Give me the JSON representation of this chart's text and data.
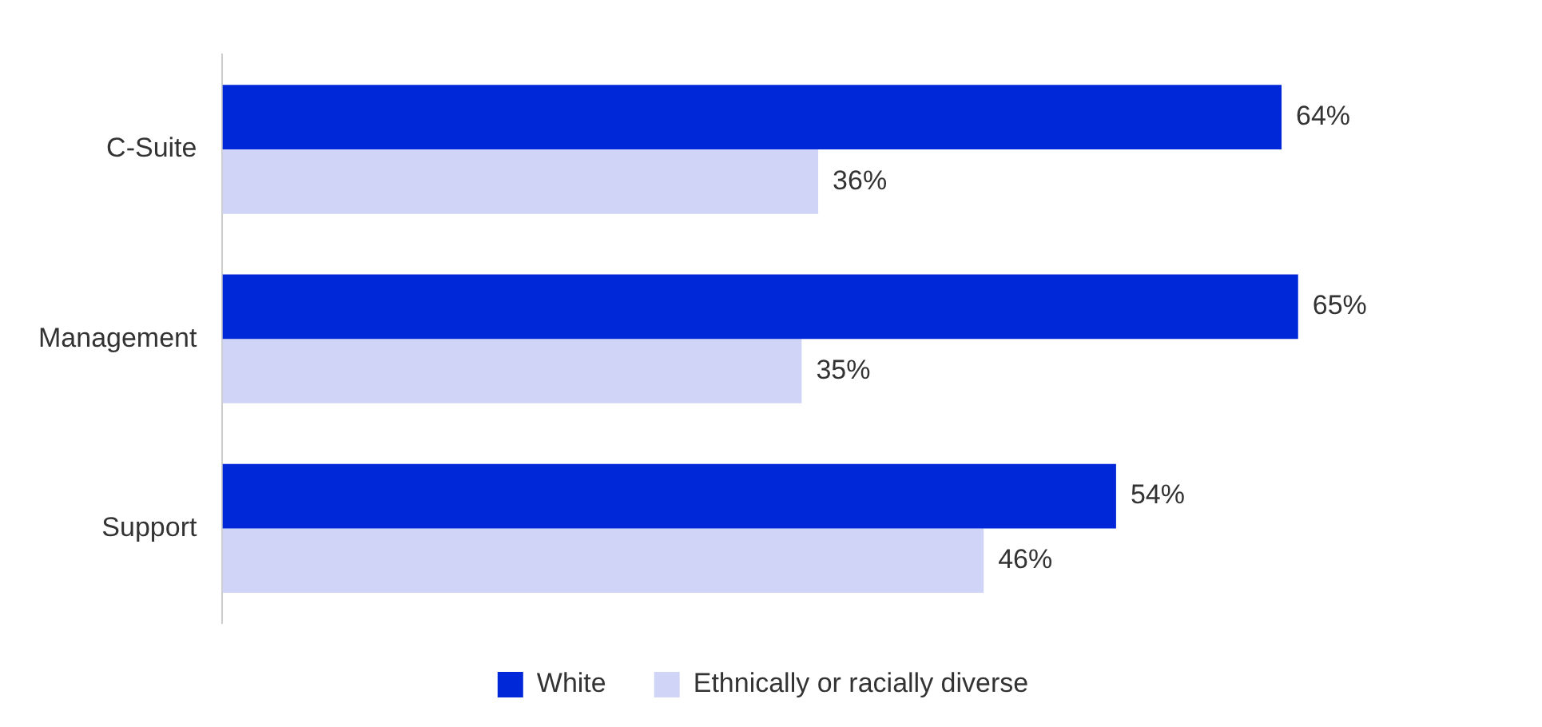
{
  "chart_data": {
    "type": "bar",
    "orientation": "horizontal",
    "categories": [
      "C-Suite",
      "Management",
      "Support"
    ],
    "series": [
      {
        "name": "White",
        "color": "#0027d8",
        "values": [
          64,
          65,
          54
        ],
        "value_labels": [
          "64%",
          "65%",
          "54%"
        ]
      },
      {
        "name": "Ethnically or racially diverse",
        "color": "#d0d5f7",
        "values": [
          36,
          35,
          46
        ],
        "value_labels": [
          "36%",
          "35%",
          "46%"
        ]
      }
    ],
    "grid": false,
    "legend": "bottom"
  }
}
